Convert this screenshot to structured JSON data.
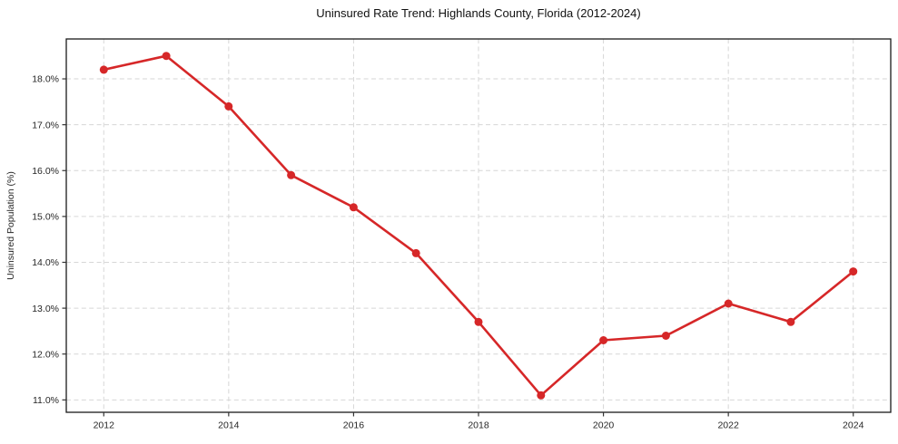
{
  "page": {
    "background": "#ffffff"
  },
  "chart_data": {
    "type": "line",
    "title": "Uninsured Rate Trend: Highlands County, Florida (2012-2024)",
    "xlabel": "",
    "ylabel": "Uninsured Population (%)",
    "x": [
      2012,
      2013,
      2014,
      2015,
      2016,
      2017,
      2018,
      2019,
      2020,
      2021,
      2022,
      2023,
      2024
    ],
    "series": [
      {
        "values": [
          18.2,
          18.5,
          17.4,
          15.9,
          15.2,
          14.2,
          12.7,
          11.1,
          12.3,
          12.4,
          13.1,
          12.7,
          13.8
        ]
      }
    ],
    "xlim": [
      2011.4,
      2024.6
    ],
    "ylim": [
      10.73,
      18.87
    ],
    "xticks": [
      {
        "value": 2012,
        "label": "2012"
      },
      {
        "value": 2014,
        "label": "2014"
      },
      {
        "value": 2016,
        "label": "2016"
      },
      {
        "value": 2018,
        "label": "2018"
      },
      {
        "value": 2020,
        "label": "2020"
      },
      {
        "value": 2022,
        "label": "2022"
      },
      {
        "value": 2024,
        "label": "2024"
      }
    ],
    "yticks": [
      {
        "value": 11,
        "label": "11.0%"
      },
      {
        "value": 12,
        "label": "12.0%"
      },
      {
        "value": 13,
        "label": "13.0%"
      },
      {
        "value": 14,
        "label": "14.0%"
      },
      {
        "value": 15,
        "label": "15.0%"
      },
      {
        "value": 16,
        "label": "16.0%"
      },
      {
        "value": 17,
        "label": "17.0%"
      },
      {
        "value": 18,
        "label": "18.0%"
      }
    ],
    "grid": true,
    "legend_position": "none",
    "colors": {
      "line": "#d62728",
      "marker": "#d62728",
      "grid": "#d6d6d6",
      "spine": "#1a1a1a",
      "tick": "#333333"
    }
  }
}
